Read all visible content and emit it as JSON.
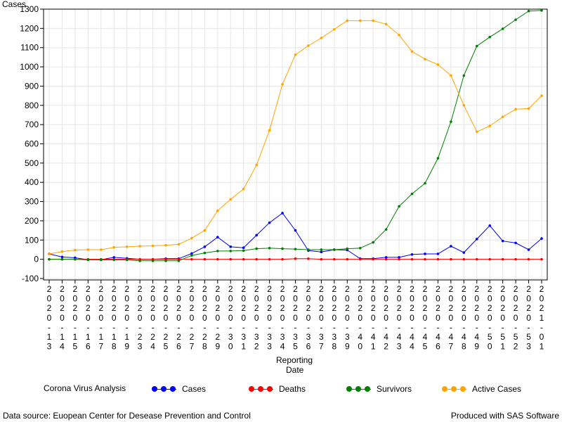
{
  "chart_data": {
    "type": "line",
    "ylabel": "Cases",
    "xlabel_lines": [
      "Reporting",
      "Date"
    ],
    "ylim": [
      -100,
      1300
    ],
    "yticks": [
      -100,
      0,
      100,
      200,
      300,
      400,
      500,
      600,
      700,
      800,
      900,
      1000,
      1100,
      1200,
      1300
    ],
    "grid": true,
    "legend_position": "bottom",
    "legend_title": "Corona Virus Analysis",
    "categories": [
      "2020-13",
      "2020-14",
      "2020-15",
      "2020-16",
      "2020-17",
      "2020-18",
      "2020-19",
      "2020-23",
      "2020-24",
      "2020-25",
      "2020-26",
      "2020-27",
      "2020-28",
      "2020-29",
      "2020-30",
      "2020-31",
      "2020-32",
      "2020-33",
      "2020-34",
      "2020-35",
      "2020-36",
      "2020-37",
      "2020-38",
      "2020-39",
      "2020-40",
      "2020-41",
      "2020-42",
      "2020-43",
      "2020-44",
      "2020-45",
      "2020-46",
      "2020-47",
      "2020-48",
      "2020-49",
      "2020-50",
      "2020-51",
      "2020-52",
      "2020-53",
      "2021-01"
    ],
    "series": [
      {
        "name": "Cases",
        "color": "#0000ff",
        "values": [
          28,
          12,
          8,
          -2,
          -2,
          10,
          5,
          0,
          0,
          3,
          3,
          30,
          65,
          115,
          65,
          60,
          125,
          190,
          240,
          150,
          45,
          38,
          50,
          48,
          3,
          3,
          10,
          10,
          25,
          28,
          28,
          68,
          35,
          105,
          175,
          95,
          85,
          50,
          108
        ]
      },
      {
        "name": "Deaths",
        "color": "#ff0000",
        "values": [
          0,
          0,
          0,
          0,
          0,
          0,
          0,
          0,
          0,
          0,
          0,
          0,
          0,
          0,
          0,
          0,
          0,
          0,
          0,
          3,
          3,
          0,
          0,
          0,
          0,
          0,
          0,
          0,
          0,
          0,
          0,
          0,
          0,
          0,
          0,
          0,
          0,
          0,
          0
        ]
      },
      {
        "name": "Survivors",
        "color": "#008000",
        "values": [
          0,
          0,
          0,
          -3,
          -3,
          -3,
          -3,
          -8,
          -8,
          -8,
          -8,
          20,
          33,
          43,
          43,
          45,
          55,
          58,
          55,
          53,
          50,
          50,
          50,
          55,
          58,
          88,
          155,
          275,
          340,
          395,
          525,
          715,
          955,
          1108,
          1155,
          1198,
          1245,
          1290,
          1293
        ]
      },
      {
        "name": "Active Cases",
        "color": "#ffa500",
        "values": [
          28,
          40,
          48,
          50,
          50,
          62,
          65,
          68,
          70,
          73,
          78,
          110,
          150,
          252,
          312,
          365,
          490,
          670,
          910,
          1063,
          1110,
          1150,
          1195,
          1240,
          1240,
          1240,
          1222,
          1165,
          1080,
          1040,
          1012,
          955,
          800,
          663,
          693,
          740,
          780,
          783,
          850
        ]
      }
    ]
  },
  "footer": {
    "source": "Data source: Euopean Center for Desease Prevention and Control",
    "produced": "Produced with SAS Software"
  }
}
